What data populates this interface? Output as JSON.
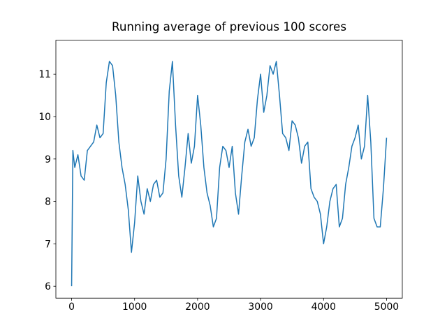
{
  "chart_data": {
    "type": "line",
    "title": "Running average of previous 100 scores",
    "x": [
      0,
      20,
      50,
      100,
      150,
      200,
      250,
      300,
      350,
      400,
      450,
      500,
      550,
      600,
      650,
      700,
      750,
      800,
      850,
      900,
      950,
      1000,
      1050,
      1100,
      1150,
      1200,
      1250,
      1300,
      1350,
      1400,
      1450,
      1500,
      1550,
      1600,
      1650,
      1700,
      1750,
      1800,
      1850,
      1900,
      1950,
      2000,
      2050,
      2100,
      2150,
      2200,
      2250,
      2300,
      2350,
      2400,
      2450,
      2500,
      2550,
      2600,
      2650,
      2700,
      2750,
      2800,
      2850,
      2900,
      2950,
      3000,
      3050,
      3100,
      3150,
      3200,
      3250,
      3300,
      3350,
      3400,
      3450,
      3500,
      3550,
      3600,
      3650,
      3700,
      3750,
      3800,
      3850,
      3900,
      3950,
      4000,
      4050,
      4100,
      4150,
      4200,
      4250,
      4300,
      4350,
      4400,
      4450,
      4500,
      4550,
      4600,
      4650,
      4700,
      4750,
      4800,
      4850,
      4900,
      4950,
      5000
    ],
    "series": [
      {
        "color": "#1f77b4",
        "values": [
          6.0,
          9.2,
          8.8,
          9.1,
          8.6,
          8.5,
          9.2,
          9.3,
          9.4,
          9.8,
          9.5,
          9.6,
          10.8,
          11.3,
          11.2,
          10.5,
          9.4,
          8.8,
          8.4,
          7.8,
          6.8,
          7.5,
          8.6,
          8.0,
          7.7,
          8.3,
          8.0,
          8.4,
          8.5,
          8.1,
          8.2,
          9.0,
          10.6,
          11.3,
          9.8,
          8.6,
          8.1,
          8.8,
          9.6,
          8.9,
          9.3,
          10.5,
          9.8,
          8.8,
          8.2,
          7.9,
          7.4,
          7.6,
          8.8,
          9.3,
          9.2,
          8.8,
          9.3,
          8.2,
          7.7,
          8.6,
          9.4,
          9.7,
          9.3,
          9.5,
          10.4,
          11.0,
          10.1,
          10.5,
          11.2,
          11.0,
          11.3,
          10.5,
          9.6,
          9.5,
          9.2,
          9.9,
          9.8,
          9.5,
          8.9,
          9.3,
          9.4,
          8.3,
          8.1,
          8.0,
          7.7,
          7.0,
          7.4,
          8.0,
          8.3,
          8.4,
          7.4,
          7.6,
          8.4,
          8.8,
          9.3,
          9.5,
          9.8,
          9.0,
          9.3,
          10.5,
          9.4,
          7.6,
          7.4,
          7.4,
          8.3,
          9.5
        ]
      }
    ],
    "xlim": [
      -250,
      5250
    ],
    "ylim": [
      5.72,
      11.8
    ],
    "xticks": [
      0,
      1000,
      2000,
      3000,
      4000,
      5000
    ],
    "yticks": [
      6,
      7,
      8,
      9,
      10,
      11
    ]
  }
}
